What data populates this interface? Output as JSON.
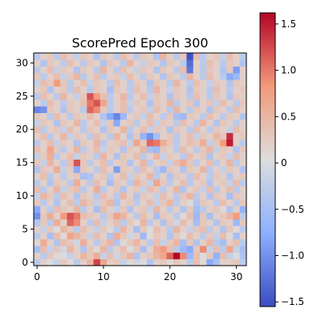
{
  "chart_data": {
    "type": "heatmap",
    "title": "ScorePred Epoch 300",
    "xlabel": "",
    "ylabel": "",
    "colormap": "coolwarm",
    "origin": "lower",
    "n_rows": 32,
    "n_cols": 32,
    "xlim": [
      -0.5,
      31.5
    ],
    "ylim": [
      -0.5,
      31.5
    ],
    "vmin": -1.55,
    "vmax": 1.62,
    "x_ticks": [
      0,
      10,
      20,
      30
    ],
    "y_ticks": [
      0,
      5,
      10,
      15,
      20,
      25,
      30
    ],
    "colorbar_ticks": [
      -1.5,
      -1.0,
      -0.5,
      0,
      0.5,
      1.0,
      1.5
    ],
    "colorbar_tick_labels": [
      "−1.5",
      "−1.0",
      "−0.5",
      "0",
      "0.5",
      "1.0",
      "1.5"
    ],
    "grid": false,
    "values": [
      [
        -0.3,
        0.2,
        0.0,
        -0.2,
        0.3,
        0.1,
        -0.3,
        0.2,
        0.5,
        1.3,
        0.7,
        0.2,
        0.3,
        -0.2,
        0.1,
        -0.1,
        0.0,
        -0.4,
        0.2,
        0.3,
        0.1,
        0.3,
        0.2,
        -0.3,
        0.4,
        0.1,
        -0.8,
        -0.5,
        0.2,
        0.2,
        0.3,
        -0.3
      ],
      [
        0.2,
        -0.3,
        0.3,
        0.1,
        0.0,
        -0.2,
        0.2,
        0.5,
        0.3,
        0.6,
        -0.2,
        0.4,
        -0.1,
        0.3,
        0.5,
        -0.4,
        0.2,
        0.3,
        0.5,
        0.7,
        1.1,
        1.6,
        0.9,
        -0.6,
        0.4,
        0.0,
        0.3,
        -0.7,
        0.4,
        -0.2,
        0.0,
        -0.4
      ],
      [
        -0.5,
        0.4,
        -0.2,
        0.3,
        -0.1,
        0.5,
        0.2,
        -0.4,
        0.3,
        0.1,
        0.5,
        -0.3,
        0.2,
        0.4,
        0.0,
        0.3,
        -0.5,
        0.2,
        0.6,
        0.8,
        0.4,
        -0.3,
        -0.6,
        -0.8,
        0.3,
        0.9,
        -0.2,
        0.4,
        -0.3,
        0.7,
        -0.2,
        -0.5
      ],
      [
        0.1,
        0.6,
        0.2,
        -0.4,
        0.4,
        0.3,
        -0.1,
        0.6,
        0.2,
        -0.3,
        0.3,
        0.5,
        -0.4,
        0.1,
        0.3,
        0.5,
        0.2,
        -0.3,
        0.4,
        -0.2,
        0.3,
        0.5,
        -0.5,
        0.3,
        -0.4,
        0.2,
        0.5,
        -0.3,
        -0.5,
        0.2,
        0.4,
        -0.3
      ],
      [
        -0.3,
        0.2,
        -0.5,
        0.4,
        0.1,
        0.7,
        0.5,
        0.3,
        -0.2,
        0.4,
        0.2,
        -0.4,
        0.6,
        0.3,
        -0.1,
        0.2,
        -0.6,
        0.1,
        0.3,
        0.2,
        -0.4,
        0.3,
        0.1,
        0.4,
        0.2,
        -0.3,
        0.3,
        -0.2,
        0.4,
        0.1,
        -0.5,
        0.2
      ],
      [
        0.2,
        -0.2,
        0.3,
        0.0,
        0.5,
        0.3,
        -0.3,
        0.4,
        0.2,
        -0.2,
        0.3,
        0.1,
        -0.3,
        0.5,
        0.2,
        -0.5,
        0.3,
        0.0,
        0.4,
        0.2,
        -0.3,
        0.5,
        0.2,
        -0.2,
        0.3,
        0.4,
        -0.3,
        0.2,
        -0.4,
        0.3,
        0.1,
        -0.3
      ],
      [
        -0.4,
        0.3,
        -0.3,
        0.6,
        0.2,
        1.1,
        0.9,
        0.2,
        -0.3,
        0.4,
        -0.2,
        0.2,
        0.4,
        -0.3,
        0.3,
        0.1,
        0.5,
        -0.3,
        0.2,
        -0.4,
        0.3,
        -0.1,
        0.4,
        0.2,
        -0.5,
        0.3,
        0.2,
        -0.4,
        0.3,
        0.2,
        -0.6,
        0.3
      ],
      [
        -1.0,
        0.3,
        0.6,
        0.2,
        0.8,
        1.2,
        1.0,
        0.4,
        0.3,
        0.2,
        -0.3,
        0.3,
        0.7,
        0.5,
        0.2,
        -0.3,
        0.4,
        0.2,
        -0.5,
        0.3,
        0.2,
        -0.3,
        0.1,
        0.4,
        -0.6,
        0.3,
        -0.5,
        0.2,
        0.3,
        0.5,
        0.8,
        -0.3
      ],
      [
        -0.8,
        0.2,
        -0.3,
        0.4,
        0.3,
        0.2,
        0.5,
        -0.3,
        0.2,
        -0.5,
        0.4,
        0.2,
        -0.2,
        0.3,
        -0.4,
        0.2,
        0.3,
        -0.2,
        0.5,
        0.2,
        -0.3,
        0.2,
        -0.4,
        0.3,
        -0.5,
        -0.3,
        0.2,
        0.3,
        0.1,
        -0.4,
        0.2,
        -0.7
      ],
      [
        0.3,
        -0.3,
        0.2,
        -0.4,
        0.2,
        0.4,
        -0.3,
        0.5,
        0.3,
        -0.2,
        0.3,
        0.5,
        -0.4,
        0.2,
        0.3,
        -0.3,
        0.2,
        0.4,
        -0.2,
        0.3,
        0.5,
        -0.3,
        0.2,
        0.1,
        -0.4,
        0.3,
        0.2,
        -0.3,
        0.4,
        0.2,
        -0.3,
        0.3
      ],
      [
        -0.2,
        0.5,
        0.3,
        -0.3,
        0.4,
        0.2,
        -0.4,
        0.3,
        0.2,
        -0.3,
        0.4,
        0.2,
        -0.3,
        0.5,
        0.2,
        -0.4,
        0.3,
        0.2,
        -0.2,
        0.4,
        0.2,
        -0.3,
        0.3,
        0.5,
        -0.3,
        0.2,
        -0.4,
        0.3,
        0.2,
        -0.5,
        0.3,
        0.2
      ],
      [
        0.4,
        -0.3,
        0.2,
        0.5,
        -0.2,
        0.3,
        0.4,
        -0.3,
        0.2,
        0.6,
        -0.3,
        0.2,
        0.3,
        -0.4,
        0.2,
        0.3,
        -0.2,
        0.4,
        0.3,
        -0.3,
        0.2,
        0.5,
        -0.4,
        0.2,
        0.3,
        -0.2,
        0.4,
        -0.3,
        0.2,
        0.4,
        -0.3,
        0.2
      ],
      [
        -0.3,
        0.2,
        -0.4,
        0.3,
        0.2,
        -0.3,
        0.6,
        0.2,
        -0.3,
        0.4,
        0.2,
        -0.5,
        0.3,
        0.2,
        -0.3,
        0.5,
        0.3,
        -0.2,
        0.7,
        0.3,
        -0.3,
        0.2,
        0.4,
        -0.3,
        0.2,
        0.3,
        -0.4,
        0.2,
        0.3,
        -0.2,
        0.4,
        -0.3
      ],
      [
        0.2,
        0.4,
        -0.3,
        0.2,
        -0.3,
        0.2,
        0.3,
        -0.5,
        -0.4,
        0.2,
        0.3,
        -0.3,
        0.2,
        0.4,
        -0.2,
        0.3,
        0.2,
        0.5,
        -0.3,
        0.2,
        -0.4,
        0.3,
        0.2,
        -0.3,
        0.4,
        0.2,
        -0.3,
        0.3,
        0.2,
        -0.4,
        0.2,
        0.3
      ],
      [
        -0.4,
        0.3,
        0.2,
        0.6,
        -0.2,
        0.3,
        -0.8,
        0.3,
        0.2,
        -0.3,
        0.4,
        0.2,
        -0.9,
        0.3,
        0.2,
        -0.3,
        0.4,
        0.2,
        -0.3,
        -0.6,
        0.3,
        0.2,
        -0.4,
        0.3,
        0.2,
        0.5,
        -0.3,
        0.2,
        -0.2,
        0.3,
        0.2,
        -0.4
      ],
      [
        0.3,
        -0.2,
        0.5,
        0.2,
        -0.3,
        0.4,
        1.2,
        0.3,
        -0.3,
        0.2,
        0.4,
        -0.3,
        0.2,
        0.3,
        -0.4,
        0.2,
        0.5,
        -0.3,
        0.2,
        0.3,
        -0.2,
        0.4,
        0.6,
        0.3,
        -0.3,
        0.2,
        0.4,
        -0.3,
        0.2,
        0.5,
        -0.3,
        0.2
      ],
      [
        -0.2,
        0.3,
        0.6,
        -0.3,
        0.2,
        0.4,
        -0.2,
        0.3,
        0.2,
        -0.3,
        0.5,
        0.2,
        -0.4,
        0.3,
        0.2,
        0.4,
        -0.3,
        0.2,
        0.5,
        -0.2,
        0.3,
        0.2,
        -0.3,
        0.4,
        0.2,
        0.3,
        -0.4,
        0.2,
        0.3,
        -0.2,
        0.4,
        0.2
      ],
      [
        0.4,
        0.2,
        0.7,
        0.3,
        -0.3,
        0.2,
        0.5,
        -0.3,
        0.2,
        0.4,
        -0.2,
        0.3,
        0.2,
        -0.4,
        0.3,
        0.2,
        0.5,
        -0.5,
        -0.6,
        0.3,
        0.2,
        -0.3,
        0.4,
        0.2,
        -0.3,
        0.3,
        0.5,
        -0.2,
        0.3,
        0.2,
        -0.4,
        0.3
      ],
      [
        -0.3,
        0.2,
        0.4,
        -0.2,
        0.3,
        0.2,
        -0.4,
        0.3,
        0.2,
        0.5,
        -0.3,
        0.2,
        0.3,
        0.4,
        -0.2,
        0.7,
        0.3,
        1.1,
        1.0,
        0.6,
        0.3,
        -0.3,
        0.2,
        0.4,
        0.3,
        0.6,
        -0.2,
        0.3,
        0.8,
        1.5,
        0.2,
        -0.3
      ],
      [
        0.2,
        0.4,
        -0.3,
        0.2,
        0.5,
        -0.2,
        0.3,
        0.2,
        -0.3,
        0.4,
        0.2,
        -0.3,
        0.5,
        0.2,
        -0.4,
        0.3,
        -0.7,
        -1.0,
        -0.5,
        0.2,
        0.3,
        -0.3,
        0.2,
        0.4,
        -0.2,
        0.3,
        0.2,
        0.5,
        0.3,
        1.4,
        0.2,
        0.3
      ],
      [
        0.4,
        -0.3,
        0.2,
        0.3,
        -0.2,
        0.4,
        0.2,
        -0.3,
        0.3,
        0.2,
        -0.4,
        0.3,
        0.2,
        0.5,
        -0.3,
        0.2,
        0.4,
        -0.2,
        0.3,
        0.2,
        -0.4,
        0.3,
        0.2,
        -0.3,
        0.4,
        0.2,
        -0.3,
        0.3,
        0.2,
        -0.2,
        0.4,
        0.2
      ],
      [
        -0.2,
        0.3,
        0.2,
        -0.4,
        0.3,
        0.2,
        0.5,
        -0.3,
        0.2,
        0.4,
        -0.2,
        0.3,
        -0.8,
        0.2,
        0.3,
        -0.3,
        0.2,
        0.4,
        -0.2,
        0.3,
        0.2,
        -0.3,
        0.4,
        0.2,
        -0.3,
        0.5,
        0.2,
        -0.4,
        0.3,
        0.2,
        -0.3,
        0.2
      ],
      [
        0.3,
        0.2,
        -0.3,
        0.4,
        0.2,
        -0.3,
        0.3,
        0.2,
        0.4,
        0.2,
        -0.4,
        -0.8,
        -1.1,
        -0.6,
        0.2,
        0.3,
        -0.2,
        0.4,
        0.2,
        -0.3,
        0.3,
        -0.5,
        -0.6,
        0.3,
        0.2,
        -0.3,
        0.4,
        0.2,
        -0.3,
        0.3,
        0.2,
        -0.4
      ],
      [
        -1.1,
        -1.0,
        0.3,
        0.2,
        -0.4,
        0.3,
        0.2,
        -0.3,
        1.1,
        0.9,
        0.3,
        -0.3,
        0.2,
        0.4,
        -0.3,
        0.2,
        0.3,
        -0.2,
        0.4,
        0.2,
        -0.3,
        0.5,
        0.2,
        -0.3,
        0.3,
        0.2,
        -0.4,
        0.3,
        0.2,
        -0.3,
        0.4,
        0.2
      ],
      [
        0.2,
        -0.3,
        0.4,
        0.2,
        -0.3,
        0.3,
        0.2,
        0.4,
        1.0,
        1.2,
        0.7,
        -0.3,
        0.2,
        0.4,
        -0.2,
        0.3,
        0.2,
        -0.4,
        0.3,
        0.2,
        0.5,
        -0.3,
        0.2,
        0.3,
        -0.4,
        0.2,
        0.3,
        -0.2,
        0.4,
        0.2,
        -0.3,
        0.3
      ],
      [
        -0.3,
        0.4,
        0.2,
        -0.3,
        0.5,
        0.2,
        -0.2,
        0.3,
        1.2,
        0.8,
        0.4,
        -0.3,
        0.2,
        0.5,
        -0.3,
        0.2,
        0.4,
        -0.2,
        0.3,
        0.2,
        -0.4,
        0.3,
        0.2,
        -0.3,
        0.4,
        0.2,
        -0.3,
        0.3,
        0.2,
        -0.4,
        0.3,
        0.2
      ],
      [
        0.2,
        0.3,
        -0.4,
        0.2,
        0.3,
        -0.3,
        0.4,
        0.2,
        -0.3,
        0.3,
        0.2,
        -0.5,
        0.3,
        0.2,
        -0.3,
        0.4,
        0.2,
        -0.3,
        0.5,
        0.2,
        -0.2,
        0.3,
        0.2,
        -0.4,
        0.3,
        0.2,
        -0.3,
        0.4,
        0.2,
        -0.3,
        0.2,
        0.3
      ],
      [
        -0.2,
        0.4,
        0.3,
        0.8,
        0.3,
        -0.3,
        0.2,
        0.4,
        -0.2,
        0.3,
        0.2,
        -0.3,
        0.4,
        0.2,
        -0.3,
        0.3,
        0.2,
        -0.4,
        0.3,
        0.2,
        -0.3,
        0.5,
        0.2,
        -0.3,
        0.4,
        0.2,
        -0.2,
        0.3,
        0.2,
        -0.4,
        0.3,
        0.2
      ],
      [
        0.3,
        -0.3,
        0.2,
        0.4,
        -0.2,
        0.3,
        0.5,
        -0.3,
        0.2,
        0.4,
        -0.3,
        0.2,
        0.3,
        -0.2,
        0.4,
        0.2,
        -0.3,
        0.3,
        0.2,
        -0.4,
        0.3,
        0.2,
        -0.3,
        0.5,
        0.2,
        -0.3,
        0.4,
        0.2,
        -0.3,
        -0.8,
        -0.6,
        0.2
      ],
      [
        -0.3,
        0.2,
        0.4,
        -0.2,
        0.3,
        0.2,
        -0.4,
        0.3,
        0.2,
        -0.3,
        0.5,
        0.2,
        -0.3,
        0.4,
        0.2,
        -0.2,
        0.3,
        0.2,
        -0.4,
        0.3,
        0.2,
        -0.3,
        0.4,
        -1.2,
        0.2,
        -0.3,
        0.3,
        0.2,
        -0.4,
        0.3,
        -0.9,
        0.2
      ],
      [
        0.2,
        -0.4,
        0.3,
        0.2,
        -0.3,
        0.4,
        0.2,
        -0.3,
        0.3,
        0.2,
        -0.4,
        0.3,
        0.2,
        -0.3,
        0.5,
        0.2,
        -0.2,
        0.3,
        0.2,
        -0.4,
        0.3,
        0.2,
        -0.3,
        -1.3,
        0.2,
        -0.3,
        0.4,
        0.2,
        -0.3,
        0.3,
        0.2,
        -0.4
      ],
      [
        -0.3,
        0.2,
        0.3,
        -0.3,
        0.4,
        0.2,
        -0.2,
        0.3,
        0.2,
        -0.4,
        0.3,
        0.2,
        -0.3,
        0.4,
        0.2,
        -0.3,
        0.3,
        0.2,
        -0.4,
        0.5,
        0.2,
        -0.3,
        0.3,
        -1.5,
        0.4,
        -0.3,
        0.2,
        0.3,
        -0.2,
        0.4,
        0.2,
        -0.3
      ]
    ]
  }
}
